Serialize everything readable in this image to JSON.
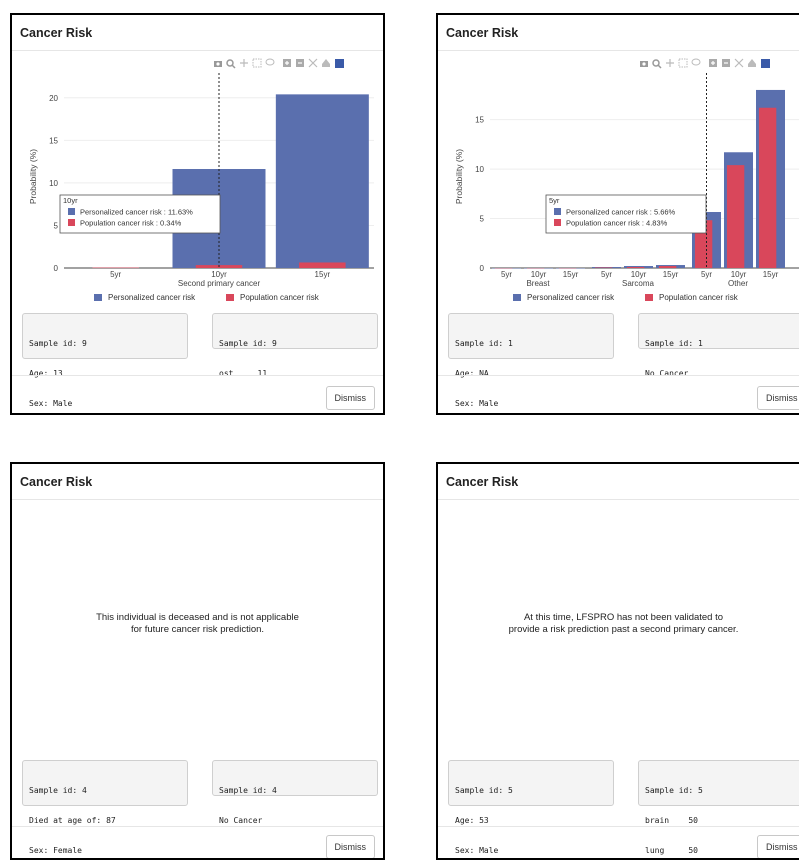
{
  "modals": [
    {
      "title": "Cancer Risk",
      "dismiss_label": "Dismiss",
      "info_left": [
        "Sample id: 9",
        "Age: 13",
        "Sex: Male"
      ],
      "info_right": [
        "Sample id: 9",
        "ost     11"
      ]
    },
    {
      "title": "Cancer Risk",
      "dismiss_label": "Dismiss",
      "info_left": [
        "Sample id: 1",
        "Age: NA",
        "Sex: Male"
      ],
      "info_right": [
        "Sample id: 1",
        "No Cancer"
      ]
    },
    {
      "title": "Cancer Risk",
      "dismiss_label": "Dismiss",
      "message": [
        "This individual is deceased and is not applicable",
        "for future cancer risk prediction."
      ],
      "info_left": [
        "Sample id: 4",
        "Died at age of: 87",
        "Sex: Female"
      ],
      "info_right": [
        "Sample id: 4",
        "No Cancer"
      ]
    },
    {
      "title": "Cancer Risk",
      "dismiss_label": "Dismiss",
      "message": [
        "At this time, LFSPRO has not been validated to",
        "provide a risk prediction past a second primary cancer."
      ],
      "info_left": [
        "Sample id: 5",
        "Age: 53",
        "Sex: Male"
      ],
      "info_right": [
        "Sample id: 5",
        "brain    50",
        "lung     50"
      ]
    }
  ],
  "colors": {
    "personalized": "#5a6fae",
    "population": "#d9475b"
  },
  "modebar_icons": [
    "camera-icon",
    "zoom-icon",
    "pan-icon",
    "box-select-icon",
    "lasso-icon",
    "zoom-in-icon",
    "zoom-out-icon",
    "autoscale-icon",
    "reset-axes-icon",
    "plotly-logo-icon"
  ],
  "chart_data": [
    {
      "type": "bar",
      "group_label": "Second primary cancer",
      "categories": [
        "5yr",
        "10yr",
        "15yr"
      ],
      "series": [
        {
          "name": "Personalized cancer risk",
          "values": [
            0.0,
            11.63,
            20.4
          ]
        },
        {
          "name": "Population cancer risk",
          "values": [
            0.05,
            0.34,
            0.65
          ]
        }
      ],
      "ylabel": "Probability (%)",
      "yticks": [
        0,
        5,
        10,
        15,
        20
      ],
      "ylim": [
        0,
        21.5
      ],
      "legend": [
        "Personalized cancer risk",
        "Population cancer risk"
      ],
      "legend_position": "bottom",
      "hover": {
        "category": "10yr",
        "title": "10yr",
        "lines": [
          "Personalized cancer risk : 11.63%",
          "Population cancer risk : 0.34%"
        ]
      }
    },
    {
      "type": "bar",
      "groups": [
        {
          "label": "Breast",
          "categories": [
            "5yr",
            "10yr",
            "15yr"
          ],
          "personalized": [
            0.0,
            0.0,
            0.0
          ],
          "population": [
            0.0,
            0.0,
            0.0
          ]
        },
        {
          "label": "Sarcoma",
          "categories": [
            "5yr",
            "10yr",
            "15yr"
          ],
          "personalized": [
            0.1,
            0.2,
            0.3
          ],
          "population": [
            0.05,
            0.1,
            0.2
          ]
        },
        {
          "label": "Other",
          "categories": [
            "5yr",
            "10yr",
            "15yr"
          ],
          "personalized": [
            5.66,
            11.7,
            18.0
          ],
          "population": [
            4.83,
            10.4,
            16.2
          ]
        }
      ],
      "ylabel": "Probability (%)",
      "yticks": [
        0,
        5,
        10,
        15
      ],
      "ylim": [
        0,
        18.5
      ],
      "legend": [
        "Personalized cancer risk",
        "Population cancer risk"
      ],
      "legend_position": "bottom",
      "hover": {
        "group": "Other",
        "category": "5yr",
        "title": "5yr",
        "lines": [
          "Personalized cancer risk : 5.66%",
          "Population cancer risk : 4.83%"
        ]
      }
    }
  ]
}
